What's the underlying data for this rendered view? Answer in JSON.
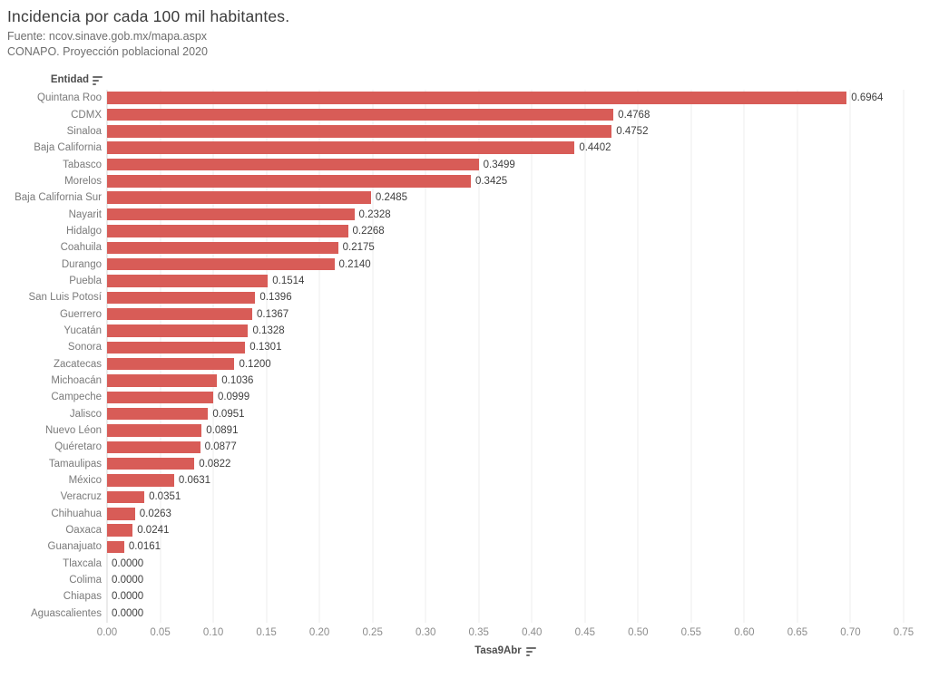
{
  "header": {
    "title": "Incidencia por cada 100 mil habitantes.",
    "subtitle_line_1": "Fuente: ncov.sinave.gob.mx/mapa.aspx",
    "subtitle_line_2": "CONAPO. Proyección poblacional 2020"
  },
  "chart_data": {
    "type": "bar",
    "orientation": "horizontal",
    "row_header": "Entidad",
    "xlabel": "Tasa9Abr",
    "sort": "descending",
    "categories": [
      "Quintana Roo",
      "CDMX",
      "Sinaloa",
      "Baja California",
      "Tabasco",
      "Morelos",
      "Baja California Sur",
      "Nayarit",
      "Hidalgo",
      "Coahuila",
      "Durango",
      "Puebla",
      "San Luis Potosí",
      "Guerrero",
      "Yucatán",
      "Sonora",
      "Zacatecas",
      "Michoacán",
      "Campeche",
      "Jalisco",
      "Nuevo Léon",
      "Quéretaro",
      "Tamaulipas",
      "México",
      "Veracruz",
      "Chihuahua",
      "Oaxaca",
      "Guanajuato",
      "Tlaxcala",
      "Colima",
      "Chiapas",
      "Aguascalientes"
    ],
    "values": [
      0.6964,
      0.4768,
      0.4752,
      0.4402,
      0.3499,
      0.3425,
      0.2485,
      0.2328,
      0.2268,
      0.2175,
      0.214,
      0.1514,
      0.1396,
      0.1367,
      0.1328,
      0.1301,
      0.12,
      0.1036,
      0.0999,
      0.0951,
      0.0891,
      0.0877,
      0.0822,
      0.0631,
      0.0351,
      0.0263,
      0.0241,
      0.0161,
      0.0,
      0.0,
      0.0,
      0.0
    ],
    "value_decimals": 4,
    "xlim": [
      0,
      0.75
    ],
    "xtick_step": 0.05,
    "xticks": [
      "0.00",
      "0.05",
      "0.10",
      "0.15",
      "0.20",
      "0.25",
      "0.30",
      "0.35",
      "0.40",
      "0.45",
      "0.50",
      "0.55",
      "0.60",
      "0.65",
      "0.70",
      "0.75"
    ],
    "bar_color": "#d85c57",
    "grid": true,
    "legend": "none"
  }
}
